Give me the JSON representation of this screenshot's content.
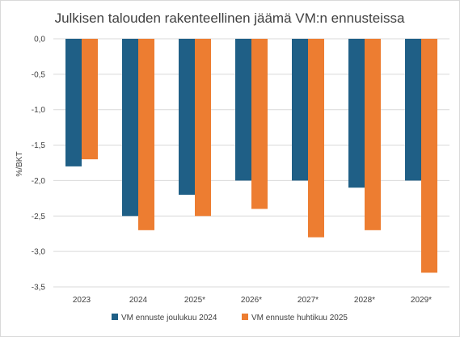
{
  "chart_data": {
    "type": "bar",
    "title": "Julkisen talouden rakenteellinen jäämä VM:n ennusteissa",
    "ylabel": "%/BKT",
    "xlabel": "",
    "categories": [
      "2023",
      "2024",
      "2025*",
      "2026*",
      "2027*",
      "2028*",
      "2029*"
    ],
    "series": [
      {
        "name": "VM ennuste joulukuu 2024",
        "color": "#1f5f86",
        "values": [
          -1.8,
          -2.5,
          -2.2,
          -2.0,
          -2.0,
          -2.1,
          -2.0
        ]
      },
      {
        "name": "VM ennuste huhtikuu 2025",
        "color": "#ed7d31",
        "values": [
          -1.7,
          -2.7,
          -2.5,
          -2.4,
          -2.8,
          -2.7,
          -3.3
        ]
      }
    ],
    "ylim": [
      -3.5,
      0.0
    ],
    "yticks": [
      "0,0",
      "-0,5",
      "-1,0",
      "-1,5",
      "-2,0",
      "-2,5",
      "-3,0",
      "-3,5"
    ],
    "grid": true,
    "legend_position": "bottom"
  }
}
